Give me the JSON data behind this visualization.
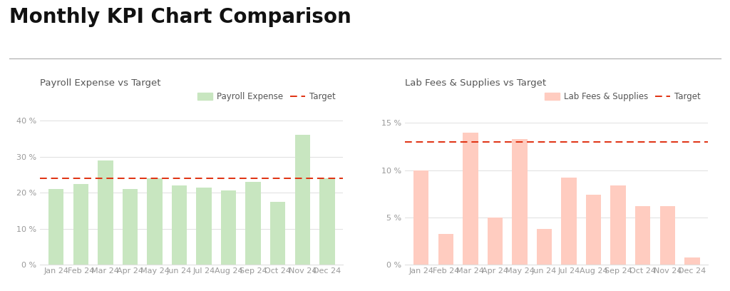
{
  "title": "Monthly KPI Chart Comparison",
  "title_fontsize": 20,
  "title_color": "#111111",
  "background_color": "#ffffff",
  "months": [
    "Jan 24",
    "Feb 24",
    "Mar 24",
    "Apr 24",
    "May 24",
    "Jun 24",
    "Jul 24",
    "Aug 24",
    "Sep 24",
    "Oct 24",
    "Nov 24",
    "Dec 24"
  ],
  "chart1_title": "Payroll Expense vs Target",
  "chart1_values": [
    21.0,
    22.5,
    29.0,
    21.0,
    24.0,
    22.0,
    21.5,
    20.7,
    23.0,
    17.5,
    36.0,
    24.0
  ],
  "chart1_target": 24.0,
  "chart1_ylim": [
    0,
    42
  ],
  "chart1_yticks": [
    0,
    10,
    20,
    30,
    40
  ],
  "chart1_yticklabels": [
    "0 %",
    "10 %",
    "20 %",
    "30 %",
    "40 %"
  ],
  "chart1_bar_color": "#c8e6c0",
  "chart1_target_color": "#e03010",
  "chart1_legend_bar": "Payroll Expense",
  "chart1_legend_line": "Target",
  "chart1_subtitle_color": "#555555",
  "chart1_subtitle_fontsize": 9.5,
  "chart2_title": "Lab Fees & Supplies vs Target",
  "chart2_values": [
    10.0,
    3.3,
    14.0,
    5.0,
    13.3,
    3.8,
    9.2,
    7.4,
    8.4,
    6.2,
    6.2,
    0.8
  ],
  "chart2_target": 13.0,
  "chart2_ylim": [
    0,
    16
  ],
  "chart2_yticks": [
    0,
    5,
    10,
    15
  ],
  "chart2_yticklabels": [
    "0 %",
    "5 %",
    "10 %",
    "15 %"
  ],
  "chart2_bar_color": "#ffccc0",
  "chart2_target_color": "#e03010",
  "chart2_legend_bar": "Lab Fees & Supplies",
  "chart2_legend_line": "Target",
  "chart2_subtitle_color": "#555555",
  "chart2_subtitle_fontsize": 9.5,
  "axis_label_color": "#999999",
  "axis_label_fontsize": 8,
  "grid_color": "#e0e0e0",
  "divider_color": "#aaaaaa"
}
